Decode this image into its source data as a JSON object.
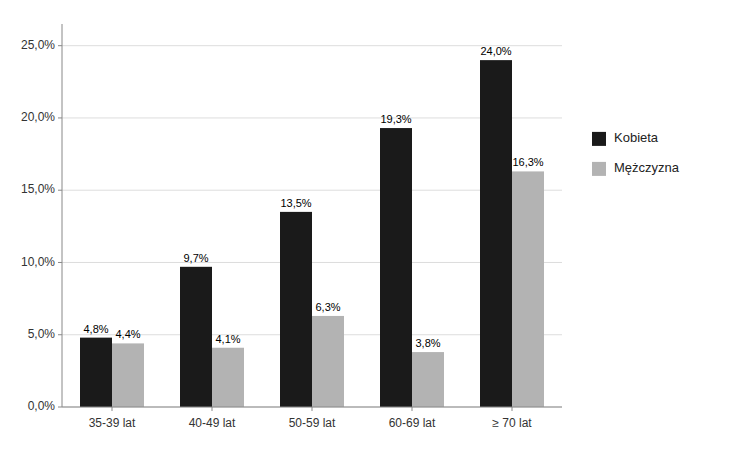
{
  "chart_data": {
    "type": "bar",
    "categories": [
      "35-39 lat",
      "40-49 lat",
      "50-59 lat",
      "60-69 lat",
      "≥ 70 lat"
    ],
    "series": [
      {
        "name": "Kobieta",
        "color": "#1a1a1a",
        "values": [
          4.8,
          9.7,
          13.5,
          19.3,
          24.0
        ],
        "value_labels": [
          "4,8%",
          "9,7%",
          "13,5%",
          "19,3%",
          "24,0%"
        ]
      },
      {
        "name": "Mężczyzna",
        "color": "#b3b3b3",
        "values": [
          4.4,
          4.1,
          6.3,
          3.8,
          16.3
        ],
        "value_labels": [
          "4,4%",
          "4,1%",
          "6,3%",
          "3,8%",
          "16,3%"
        ]
      }
    ],
    "ylim": [
      0,
      26.5
    ],
    "yticks": [
      {
        "value": 0,
        "label": "0,0%"
      },
      {
        "value": 5,
        "label": "5,0%"
      },
      {
        "value": 10,
        "label": "10,0%"
      },
      {
        "value": 15,
        "label": "15,0%"
      },
      {
        "value": 20,
        "label": "20,0%"
      },
      {
        "value": 25,
        "label": "25,0%"
      }
    ],
    "grid": true,
    "legend": "right",
    "data_labels": true
  }
}
